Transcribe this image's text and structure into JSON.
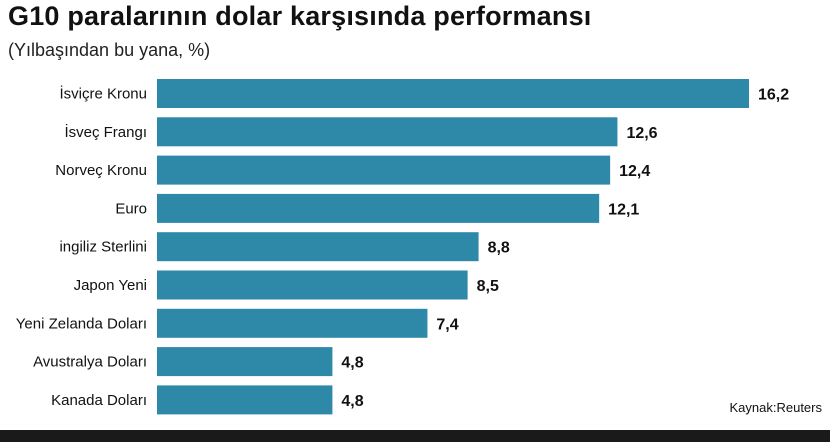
{
  "chart_data": {
    "type": "bar",
    "orientation": "horizontal",
    "title": "G10 paralarının dolar karşısında performansı",
    "subtitle": "(Yılbaşından bu yana, %)",
    "categories": [
      "İsviçre Kronu",
      "İsveç Frangı",
      "Norveç Kronu",
      "Euro",
      "ingiliz Sterlini",
      "Japon Yeni",
      "Yeni Zelanda Doları",
      "Avustralya Doları",
      "Kanada Doları"
    ],
    "values": [
      16.2,
      12.6,
      12.4,
      12.1,
      8.8,
      8.5,
      7.4,
      4.8,
      4.8
    ],
    "value_labels": [
      "16,2",
      "12,6",
      "12,4",
      "12,1",
      "8,8",
      "8,5",
      "7,4",
      "4,8",
      "4,8"
    ],
    "xlim": [
      0,
      16.2
    ],
    "grid": false,
    "bar_color": "#2e88a8",
    "source": "Kaynak:Reuters"
  }
}
